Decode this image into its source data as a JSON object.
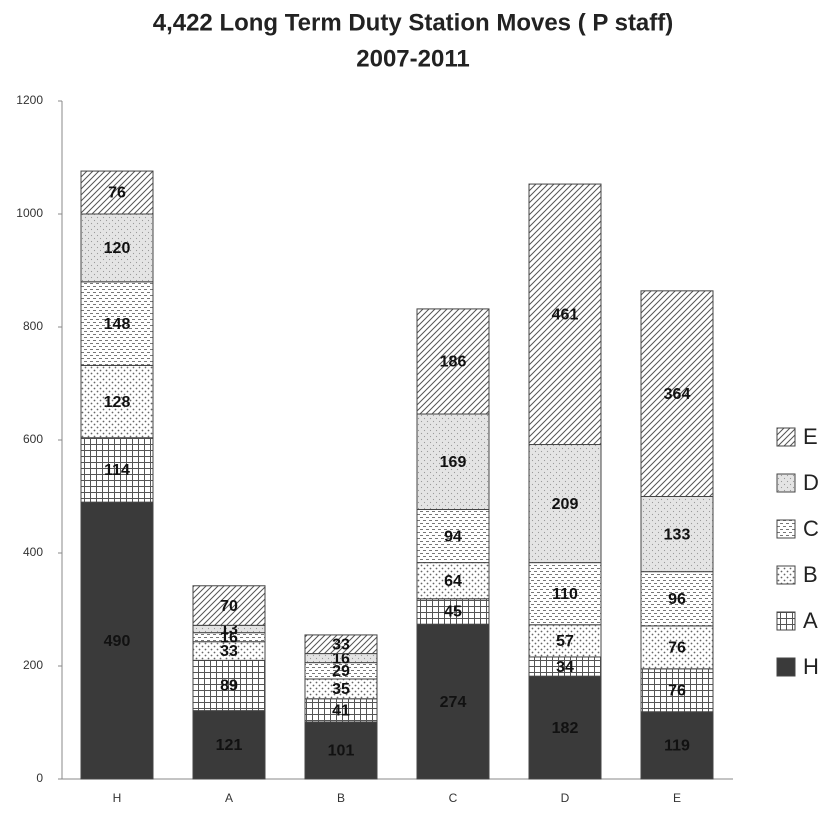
{
  "chart_data": {
    "type": "stacked_bar",
    "title": "4,422 Long Term Duty Station Moves ( P staff)",
    "subtitle": "2007-2011",
    "categories": [
      "H",
      "A",
      "B",
      "C",
      "D",
      "E"
    ],
    "series": [
      {
        "name": "H",
        "color": "#3a3a3a",
        "pattern": "solid",
        "values": [
          490,
          121,
          101,
          274,
          182,
          119
        ]
      },
      {
        "name": "A",
        "color": "#555555",
        "pattern": "grid",
        "values": [
          114,
          89,
          41,
          45,
          34,
          76
        ]
      },
      {
        "name": "B",
        "color": "#666666",
        "pattern": "dots",
        "values": [
          128,
          33,
          35,
          64,
          57,
          76
        ]
      },
      {
        "name": "C",
        "color": "#777777",
        "pattern": "dashes",
        "values": [
          148,
          16,
          29,
          94,
          110,
          96
        ]
      },
      {
        "name": "D",
        "color": "#999999",
        "pattern": "fine",
        "values": [
          120,
          13,
          16,
          169,
          209,
          133
        ]
      },
      {
        "name": "E",
        "color": "#555555",
        "pattern": "diagonal",
        "values": [
          76,
          70,
          33,
          186,
          461,
          364
        ]
      }
    ],
    "ylim": [
      0,
      1200
    ],
    "yticks": [
      0,
      200,
      400,
      600,
      800,
      1000,
      1200
    ],
    "legend": "right"
  }
}
